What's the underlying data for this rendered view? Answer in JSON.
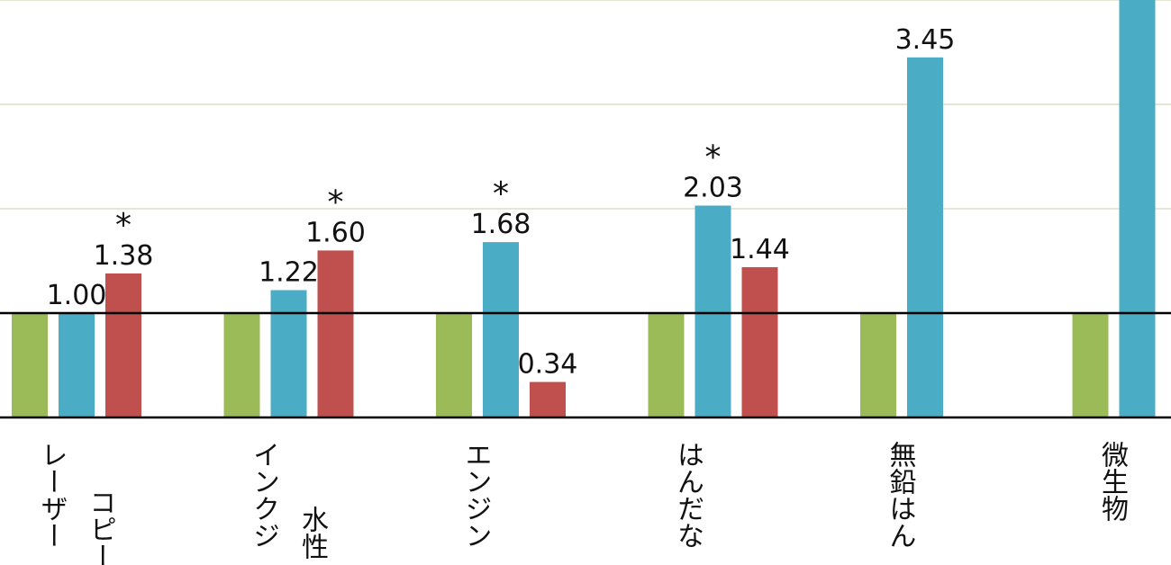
{
  "chart_data": {
    "type": "bar",
    "categories": [
      [
        "レーザー",
        "コピー"
      ],
      [
        "インクジ",
        "水性"
      ],
      [
        "エンジン"
      ],
      [
        "はんだな"
      ],
      [
        "無鉛はん"
      ],
      [
        "微生物"
      ]
    ],
    "series": [
      {
        "color": "#9bbb59",
        "values": [
          1,
          1,
          1,
          1,
          1,
          1
        ]
      },
      {
        "color": "#4bacc6",
        "values": [
          1.0,
          1.22,
          1.68,
          2.03,
          3.45,
          4.2
        ],
        "value_labels": [
          "1.00",
          "1.22",
          "1.68",
          "2.03",
          "3.45",
          null
        ]
      },
      {
        "color": "#c0504d",
        "values": [
          1.38,
          1.6,
          0.34,
          1.44,
          null,
          null
        ],
        "value_labels": [
          "1.38",
          "1.60",
          "0.34",
          "1.44",
          null,
          null
        ]
      }
    ],
    "annotations": [
      {
        "text": "*",
        "series": 2,
        "index": 0
      },
      {
        "text": "*",
        "series": 2,
        "index": 1
      },
      {
        "text": "*",
        "series": 1,
        "index": 2
      },
      {
        "text": "*",
        "series": 1,
        "index": 3
      }
    ],
    "ylim": [
      0,
      4
    ],
    "yticks": [
      0,
      1,
      2,
      3,
      4
    ],
    "grid": true,
    "reference_line": 1
  }
}
